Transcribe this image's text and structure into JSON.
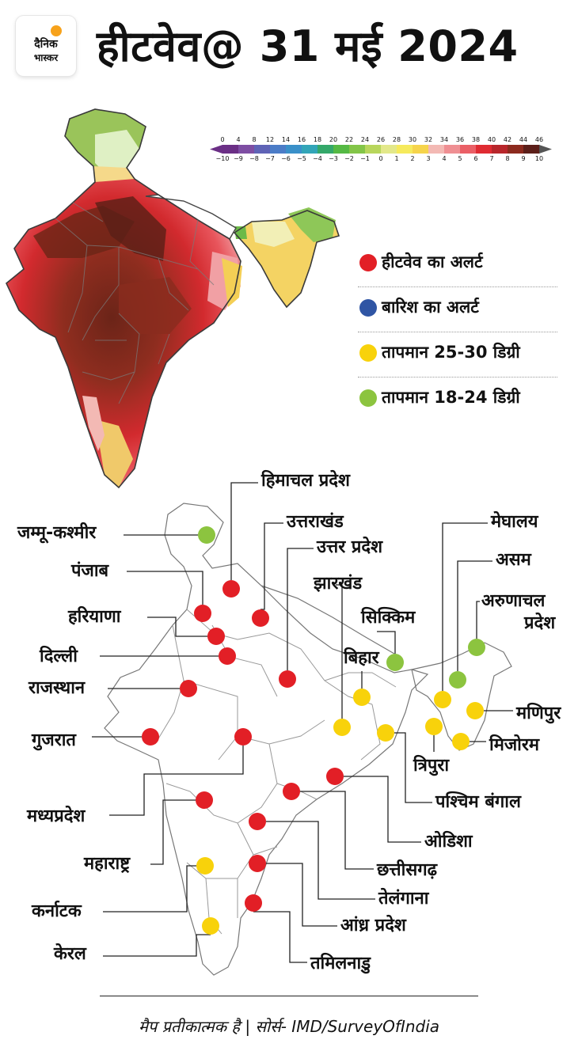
{
  "header": {
    "logo_line1": "दैनिक",
    "logo_line2": "भास्कर",
    "title": "हीटवेव@ 31 मई 2024"
  },
  "temperature_scale": {
    "celsius": [
      "0",
      "4",
      "8",
      "12",
      "14",
      "16",
      "18",
      "20",
      "22",
      "24",
      "26",
      "28",
      "30",
      "32",
      "34",
      "36",
      "38",
      "40",
      "42",
      "44",
      "46"
    ],
    "anomaly": [
      "−10",
      "−9",
      "−8",
      "−7",
      "−6",
      "−5",
      "−4",
      "−3",
      "−2",
      "−1",
      "0",
      "1",
      "2",
      "3",
      "4",
      "5",
      "6",
      "7",
      "8",
      "9",
      "10"
    ],
    "colors": [
      "#6b2f86",
      "#7e4ea3",
      "#5f63b6",
      "#4b7cc7",
      "#3a90c9",
      "#32a5b8",
      "#34a86a",
      "#55b944",
      "#83c548",
      "#b8d65c",
      "#e3e88a",
      "#f6ea5c",
      "#f6d44b",
      "#f3b9b4",
      "#ef8f93",
      "#ea5f66",
      "#df2b32",
      "#b8262b",
      "#8c2a1e",
      "#5c1f1a"
    ]
  },
  "legend": [
    {
      "label": "हीटवेव का अलर्ट",
      "color": "#e21f26"
    },
    {
      "label": "बारिश का अलर्ट",
      "color": "#2f55a4"
    },
    {
      "label": "तापमान 25-30 डिग्री",
      "color": "#f8d20b"
    },
    {
      "label": "तापमान 18-24 डिग्री",
      "color": "#8cc43f"
    }
  ],
  "states": [
    {
      "id": "himachal",
      "name": "हिमाचल प्रदेश",
      "alert": "heatwave"
    },
    {
      "id": "jk",
      "name": "जम्मू-कश्मीर",
      "alert": "temp-18-24"
    },
    {
      "id": "uttarakhand",
      "name": "उत्तराखंड",
      "alert": "heatwave"
    },
    {
      "id": "punjab",
      "name": "पंजाब",
      "alert": "heatwave"
    },
    {
      "id": "up",
      "name": "उत्तर प्रदेश",
      "alert": "heatwave"
    },
    {
      "id": "jharkhand",
      "name": "झारखंड",
      "alert": "temp-25-30"
    },
    {
      "id": "meghalaya",
      "name": "मेघालय",
      "alert": "temp-25-30"
    },
    {
      "id": "assam",
      "name": "असम",
      "alert": "temp-18-24"
    },
    {
      "id": "arunachal",
      "name": "अरुणाचल प्रदेश",
      "alert": "temp-18-24"
    },
    {
      "id": "sikkim",
      "name": "सिक्किम",
      "alert": "temp-18-24"
    },
    {
      "id": "haryana",
      "name": "हरियाणा",
      "alert": "heatwave"
    },
    {
      "id": "delhi",
      "name": "दिल्ली",
      "alert": "heatwave"
    },
    {
      "id": "bihar",
      "name": "बिहार",
      "alert": "temp-25-30"
    },
    {
      "id": "rajasthan",
      "name": "राजस्थान",
      "alert": "heatwave"
    },
    {
      "id": "manipur",
      "name": "मणिपुर",
      "alert": "temp-25-30"
    },
    {
      "id": "gujarat",
      "name": "गुजरात",
      "alert": "heatwave"
    },
    {
      "id": "mizoram",
      "name": "मिजोरम",
      "alert": "temp-25-30"
    },
    {
      "id": "tripura",
      "name": "त्रिपुरा",
      "alert": "temp-25-30"
    },
    {
      "id": "westbengal",
      "name": "पश्चिम बंगाल",
      "alert": "temp-25-30"
    },
    {
      "id": "mp",
      "name": "मध्यप्रदेश",
      "alert": "heatwave"
    },
    {
      "id": "odisha",
      "name": "ओडिशा",
      "alert": "heatwave"
    },
    {
      "id": "maharashtra",
      "name": "महाराष्ट्र",
      "alert": "heatwave"
    },
    {
      "id": "chhattisgarh",
      "name": "छत्तीसगढ़",
      "alert": "heatwave"
    },
    {
      "id": "telangana",
      "name": "तेलंगाना",
      "alert": "heatwave"
    },
    {
      "id": "karnataka",
      "name": "कर्नाटक",
      "alert": "temp-25-30"
    },
    {
      "id": "andhra",
      "name": "आंध्र प्रदेश",
      "alert": "heatwave"
    },
    {
      "id": "kerala",
      "name": "केरल",
      "alert": "temp-25-30"
    },
    {
      "id": "tamilnadu",
      "name": "तमिलनाडु",
      "alert": "heatwave"
    }
  ],
  "footer": "मैप प्रतीकात्मक है | सोर्स- IMD/SurveyOfIndia"
}
